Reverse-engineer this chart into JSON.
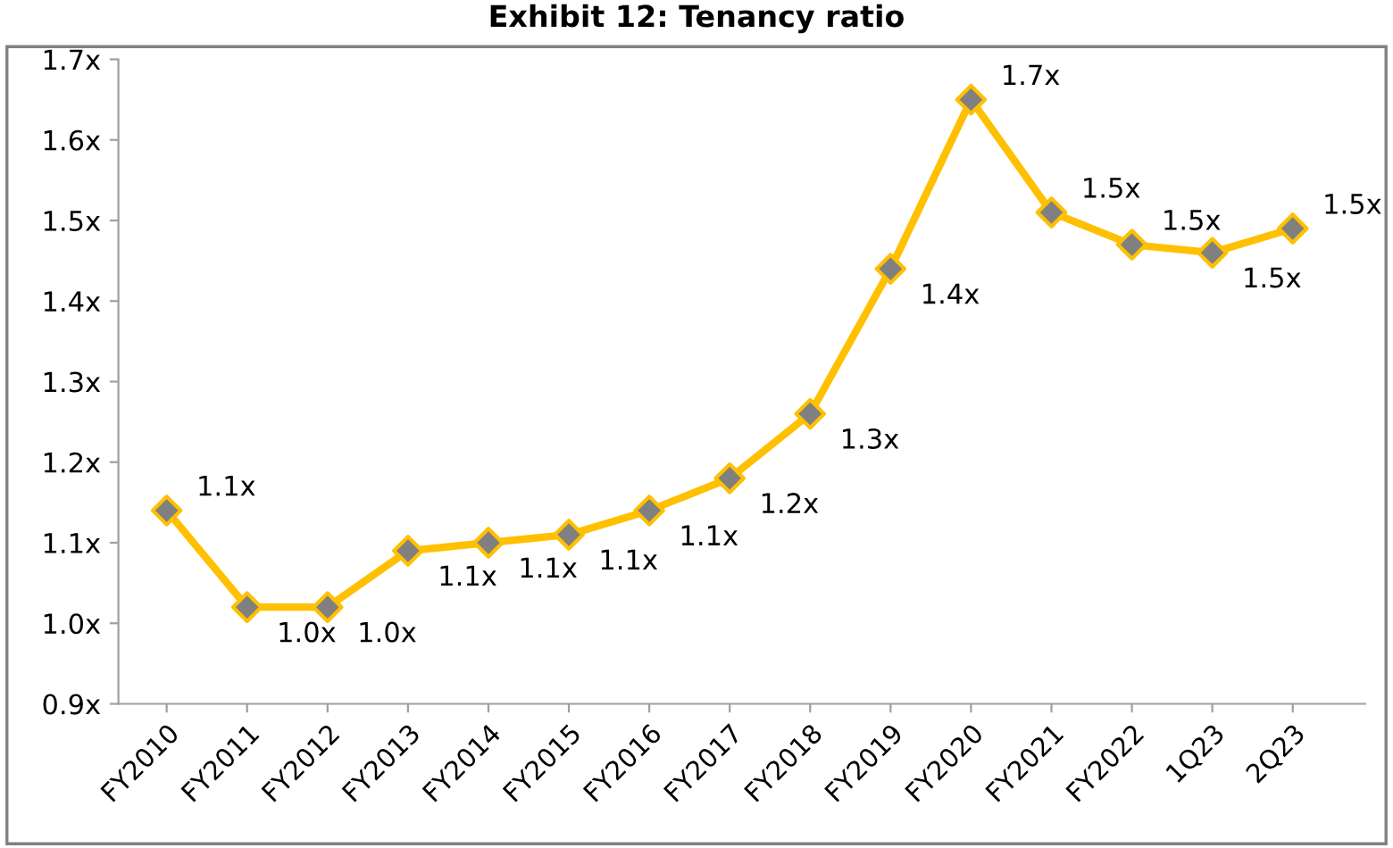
{
  "chart_data": {
    "type": "line",
    "title": "Exhibit 12: Tenancy ratio",
    "categories": [
      "FY2010",
      "FY2011",
      "FY2012",
      "FY2013",
      "FY2014",
      "FY2015",
      "FY2016",
      "FY2017",
      "FY2018",
      "FY2019",
      "FY2020",
      "FY2021",
      "FY2022",
      "1Q23",
      "2Q23"
    ],
    "series": [
      {
        "color": "#ffc000",
        "colors": [
          "#808080",
          "#808080",
          "#808080",
          "#808080",
          "#808080",
          "#808080",
          "#808080",
          "#808080",
          "#808080",
          "#808080",
          "#808080",
          "#808080",
          "#808080",
          "#808080",
          "#808080"
        ],
        "values": [
          1.14,
          1.02,
          1.02,
          1.09,
          1.1,
          1.11,
          1.14,
          1.18,
          1.26,
          1.44,
          1.65,
          1.51,
          1.47,
          1.46,
          1.49
        ],
        "value_labels": [
          "1.1x",
          "1.0x",
          "1.0x",
          "1.1x",
          "1.1x",
          "1.1x",
          "1.1x",
          "1.2x",
          "1.3x",
          "1.4x",
          "1.7x",
          "1.5x",
          "1.5x",
          "1.5x",
          "1.5x"
        ]
      }
    ],
    "ylim": [
      0.9,
      1.7
    ],
    "yticks": [
      {
        "value": 0.9,
        "label": "0.9x"
      },
      {
        "value": 1.0,
        "label": "1.0x"
      },
      {
        "value": 1.1,
        "label": "1.1x"
      },
      {
        "value": 1.2,
        "label": "1.2x"
      },
      {
        "value": 1.3,
        "label": "1.3x"
      },
      {
        "value": 1.4,
        "label": "1.4x"
      },
      {
        "value": 1.5,
        "label": "1.5x"
      },
      {
        "value": 1.6,
        "label": "1.6x"
      },
      {
        "value": 1.7,
        "label": "1.7x"
      }
    ],
    "marker": "diamond",
    "line_style": "solid",
    "grid": false,
    "legend": false
  }
}
